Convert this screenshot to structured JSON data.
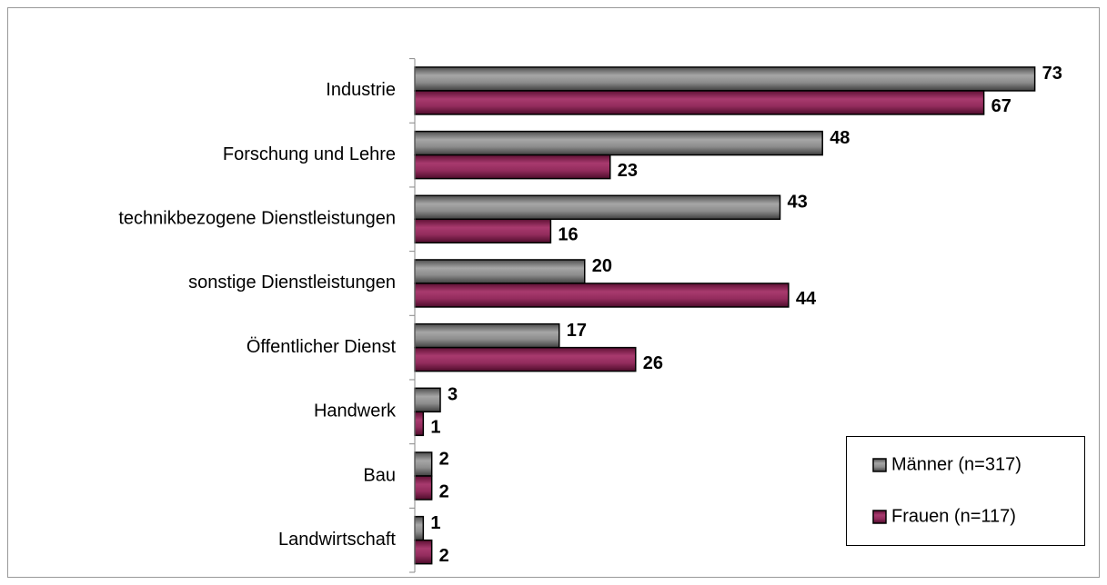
{
  "chart_data": {
    "type": "bar",
    "orientation": "horizontal",
    "categories": [
      "Industrie",
      "Forschung und Lehre",
      "technikbezogene Dienstleistungen",
      "sonstige Dienstleistungen",
      "Öffentlicher Dienst",
      "Handwerk",
      "Bau",
      "Landwirtschaft"
    ],
    "series": [
      {
        "name": "Männer (n=317)",
        "color": "#7f7f7f",
        "values": [
          73,
          48,
          43,
          20,
          17,
          3,
          2,
          1
        ]
      },
      {
        "name": "Frauen (n=117)",
        "color": "#8e2a5a",
        "values": [
          67,
          23,
          16,
          44,
          26,
          1,
          2,
          2
        ]
      }
    ],
    "xlim": [
      0,
      80
    ],
    "legend": "lower right"
  }
}
